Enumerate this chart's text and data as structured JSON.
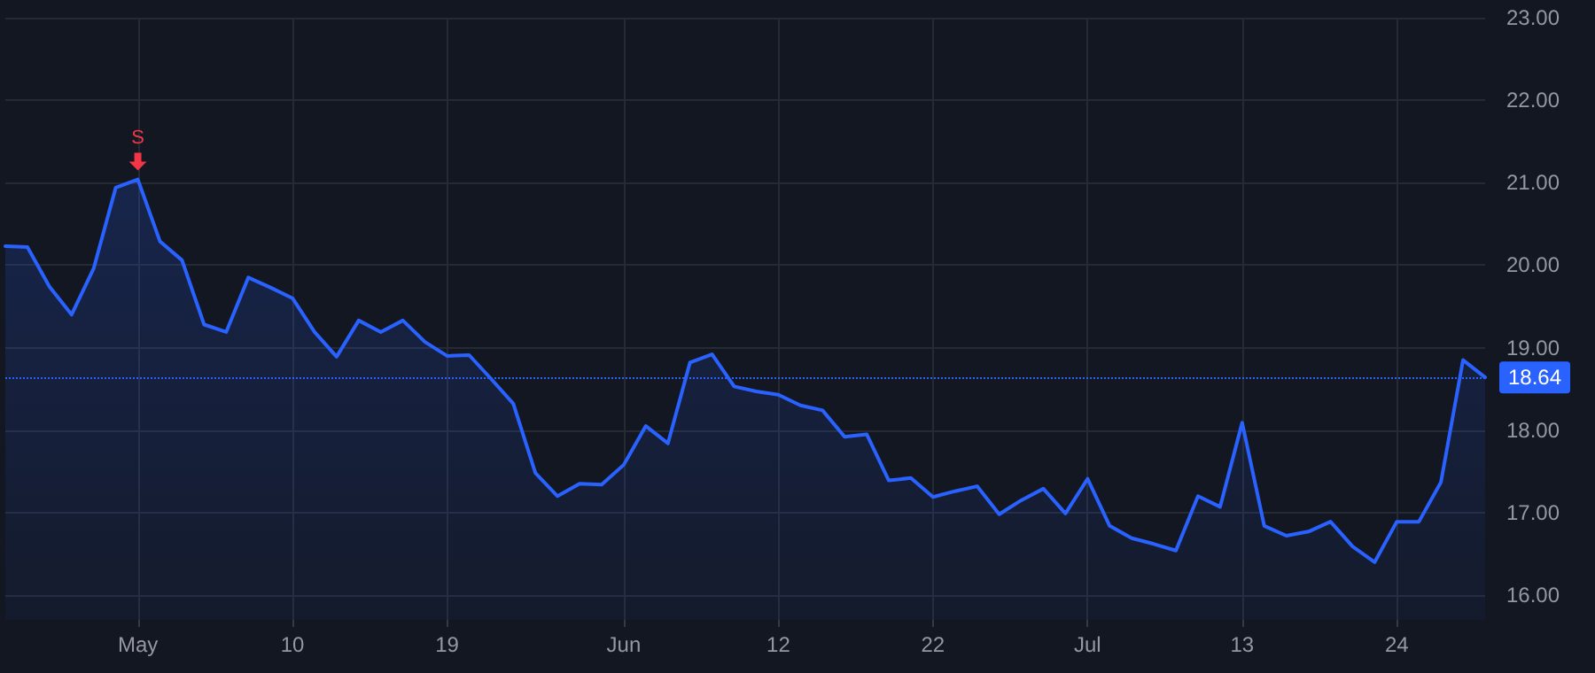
{
  "chart_data": {
    "type": "area",
    "categories": [
      null,
      null,
      null,
      null,
      null,
      null,
      "May",
      null,
      null,
      null,
      null,
      null,
      null,
      "10",
      null,
      null,
      null,
      null,
      null,
      null,
      "19",
      null,
      null,
      null,
      null,
      null,
      null,
      null,
      "Jun",
      null,
      null,
      null,
      null,
      null,
      null,
      "12",
      null,
      null,
      null,
      null,
      null,
      null,
      "22",
      null,
      null,
      null,
      null,
      null,
      null,
      "Jul",
      null,
      null,
      null,
      null,
      null,
      null,
      "13",
      null,
      null,
      null,
      null,
      null,
      null,
      "24",
      null,
      null,
      null,
      null
    ],
    "series": [
      {
        "color": "#2962ff",
        "values": [
          20.23,
          20.22,
          19.74,
          19.4,
          19.96,
          20.94,
          21.04,
          20.29,
          20.06,
          19.28,
          19.19,
          19.85,
          19.73,
          19.6,
          19.19,
          18.89,
          19.33,
          19.19,
          19.33,
          19.07,
          18.9,
          18.91,
          18.62,
          18.32,
          17.48,
          17.2,
          17.35,
          17.34,
          17.58,
          18.05,
          17.84,
          18.82,
          18.92,
          18.53,
          18.47,
          18.43,
          18.3,
          18.24,
          17.92,
          17.95,
          17.39,
          17.42,
          17.19,
          17.26,
          17.32,
          16.98,
          17.15,
          17.29,
          16.99,
          17.41,
          16.84,
          16.69,
          16.62,
          16.54,
          17.2,
          17.07,
          18.09,
          16.84,
          16.72,
          16.77,
          16.89,
          16.59,
          16.4,
          16.89,
          16.89,
          17.37,
          18.85,
          18.64
        ]
      }
    ],
    "ylim": [
      15.7,
      23
    ],
    "yticks": [
      {
        "value": 16,
        "label": "16.00"
      },
      {
        "value": 17,
        "label": "17.00"
      },
      {
        "value": 18,
        "label": "18.00"
      },
      {
        "value": 19,
        "label": "19.00"
      },
      {
        "value": 20,
        "label": "20.00"
      },
      {
        "value": 21,
        "label": "21.00"
      },
      {
        "value": 22,
        "label": "22.00"
      },
      {
        "value": 23,
        "label": "23.00"
      }
    ],
    "annotations": [
      {
        "text": "S",
        "x": "May",
        "y": 21.04
      }
    ],
    "ref_lines": [
      {
        "axis": "y",
        "value": 18.64,
        "label": "18.64",
        "color": "#2962ff",
        "line_style": "dotted"
      }
    ],
    "grid": true,
    "marker": "none",
    "line_style": "solid"
  }
}
